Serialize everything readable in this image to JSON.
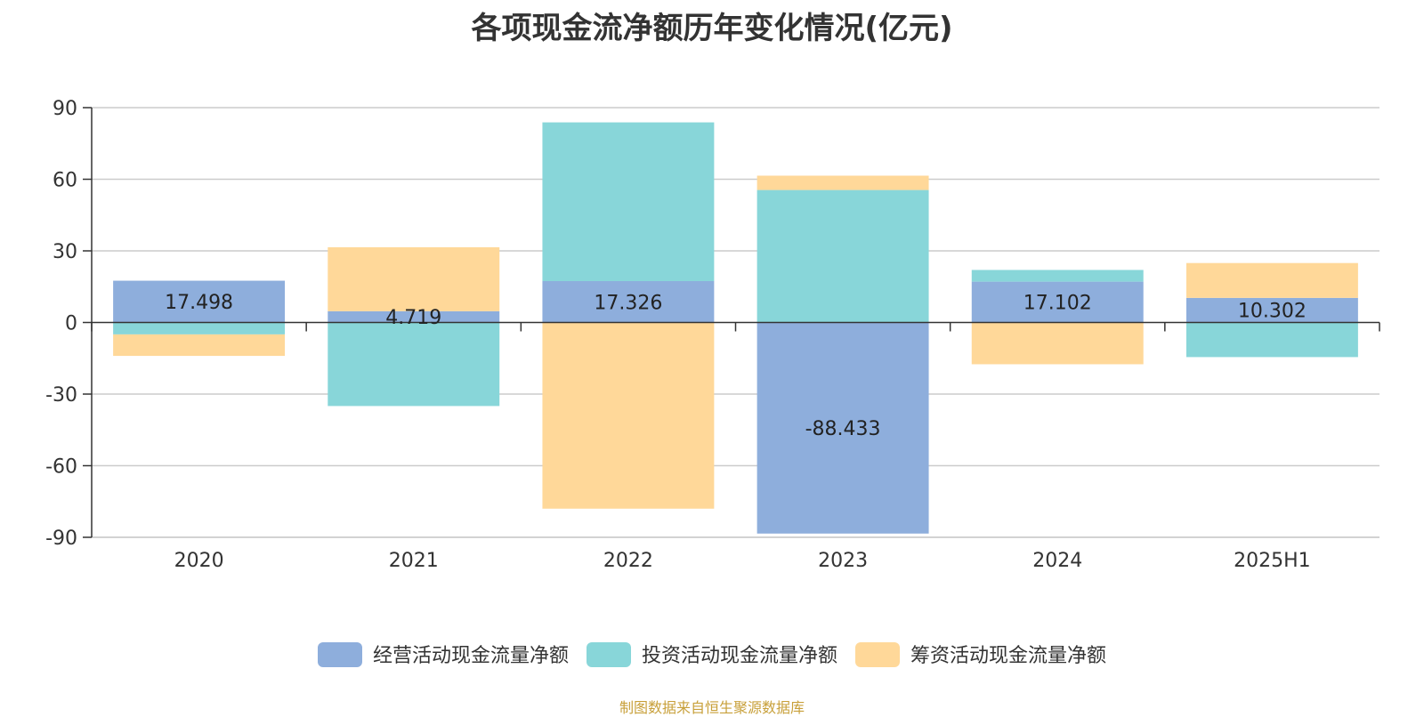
{
  "chart_data": {
    "type": "bar",
    "stacked": true,
    "title": "各项现金流净额历年变化情况(亿元)",
    "categories": [
      "2020",
      "2021",
      "2022",
      "2023",
      "2024",
      "2025H1"
    ],
    "series": [
      {
        "name": "经营活动现金流量净额",
        "color": "#8eaedc",
        "values": [
          17.498,
          4.719,
          17.326,
          -88.433,
          17.102,
          10.302
        ],
        "labels": [
          "17.498",
          "4.719",
          "17.326",
          "-88.433",
          "17.102",
          "10.302"
        ]
      },
      {
        "name": "投资活动现金流量净额",
        "color": "#88d6d9",
        "values": [
          -5.0,
          -35.0,
          66.5,
          55.5,
          4.9,
          -14.5
        ]
      },
      {
        "name": "筹资活动现金流量净额",
        "color": "#ffd899",
        "values": [
          -9.0,
          26.8,
          -78.0,
          6.0,
          -17.5,
          14.6
        ]
      }
    ],
    "ylim": [
      -90,
      90
    ],
    "yticks": [
      "90",
      "60",
      "30",
      "0",
      "-30",
      "-60",
      "-90"
    ],
    "grid": true,
    "legend_position": "bottom"
  },
  "source": "制图数据来自恒生聚源数据库"
}
